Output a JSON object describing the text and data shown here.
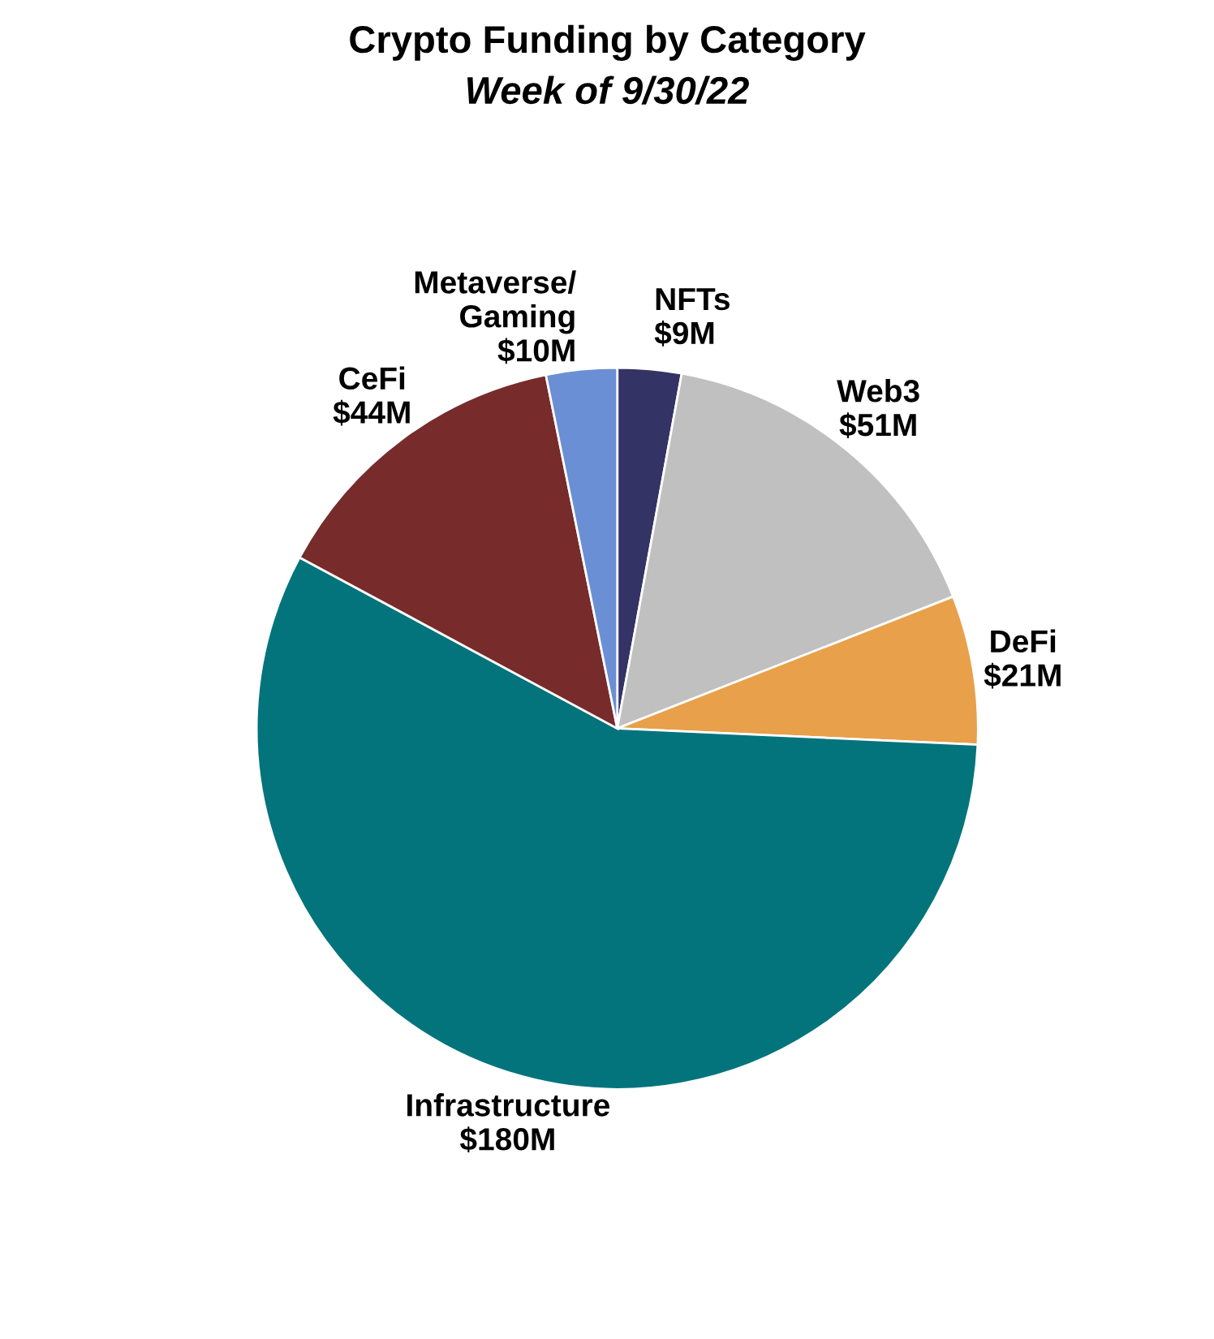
{
  "chart_data": {
    "type": "pie",
    "title": "Crypto Funding by Category",
    "subtitle": "Week of 9/30/22",
    "categories": [
      "NFTs",
      "Web3",
      "DeFi",
      "Infrastructure",
      "CeFi",
      "Metaverse/\nGaming"
    ],
    "values": [
      9,
      51,
      21,
      180,
      44,
      10
    ],
    "value_labels": [
      "$9M",
      "$51M",
      "$21M",
      "$180M",
      "$44M",
      "$10M"
    ],
    "colors": [
      "#333366",
      "#c0c0c0",
      "#e8a04a",
      "#04747c",
      "#772b2b",
      "#6a8fd4"
    ]
  }
}
